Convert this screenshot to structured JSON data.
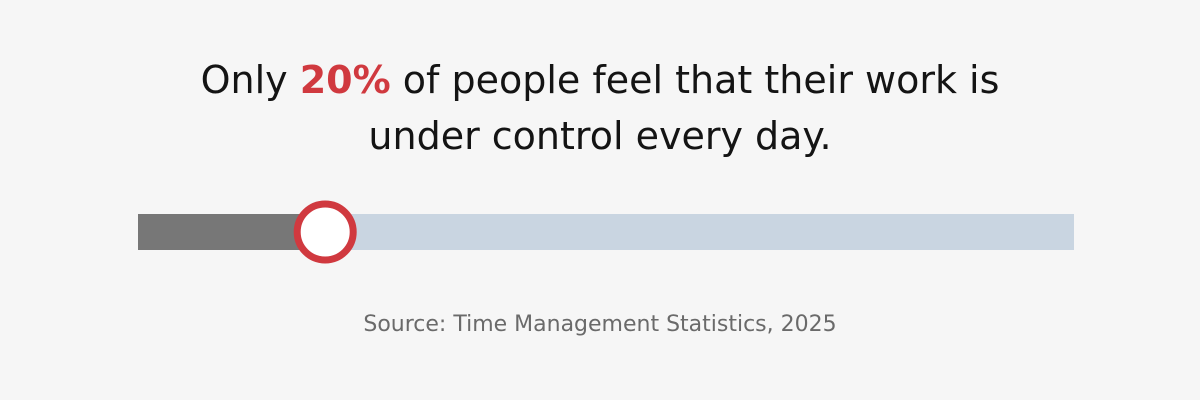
{
  "chart_data": {
    "type": "progress",
    "title": [
      "Only",
      "of people feel that their work is",
      "under control every day."
    ],
    "value": 20,
    "value_label": "20%",
    "xlim": [
      0,
      100
    ],
    "color": "#777777",
    "track_color": "#c9d5e1",
    "marker_color": "#d0393f",
    "source": "Source: Time Management Statistics, 2025"
  }
}
